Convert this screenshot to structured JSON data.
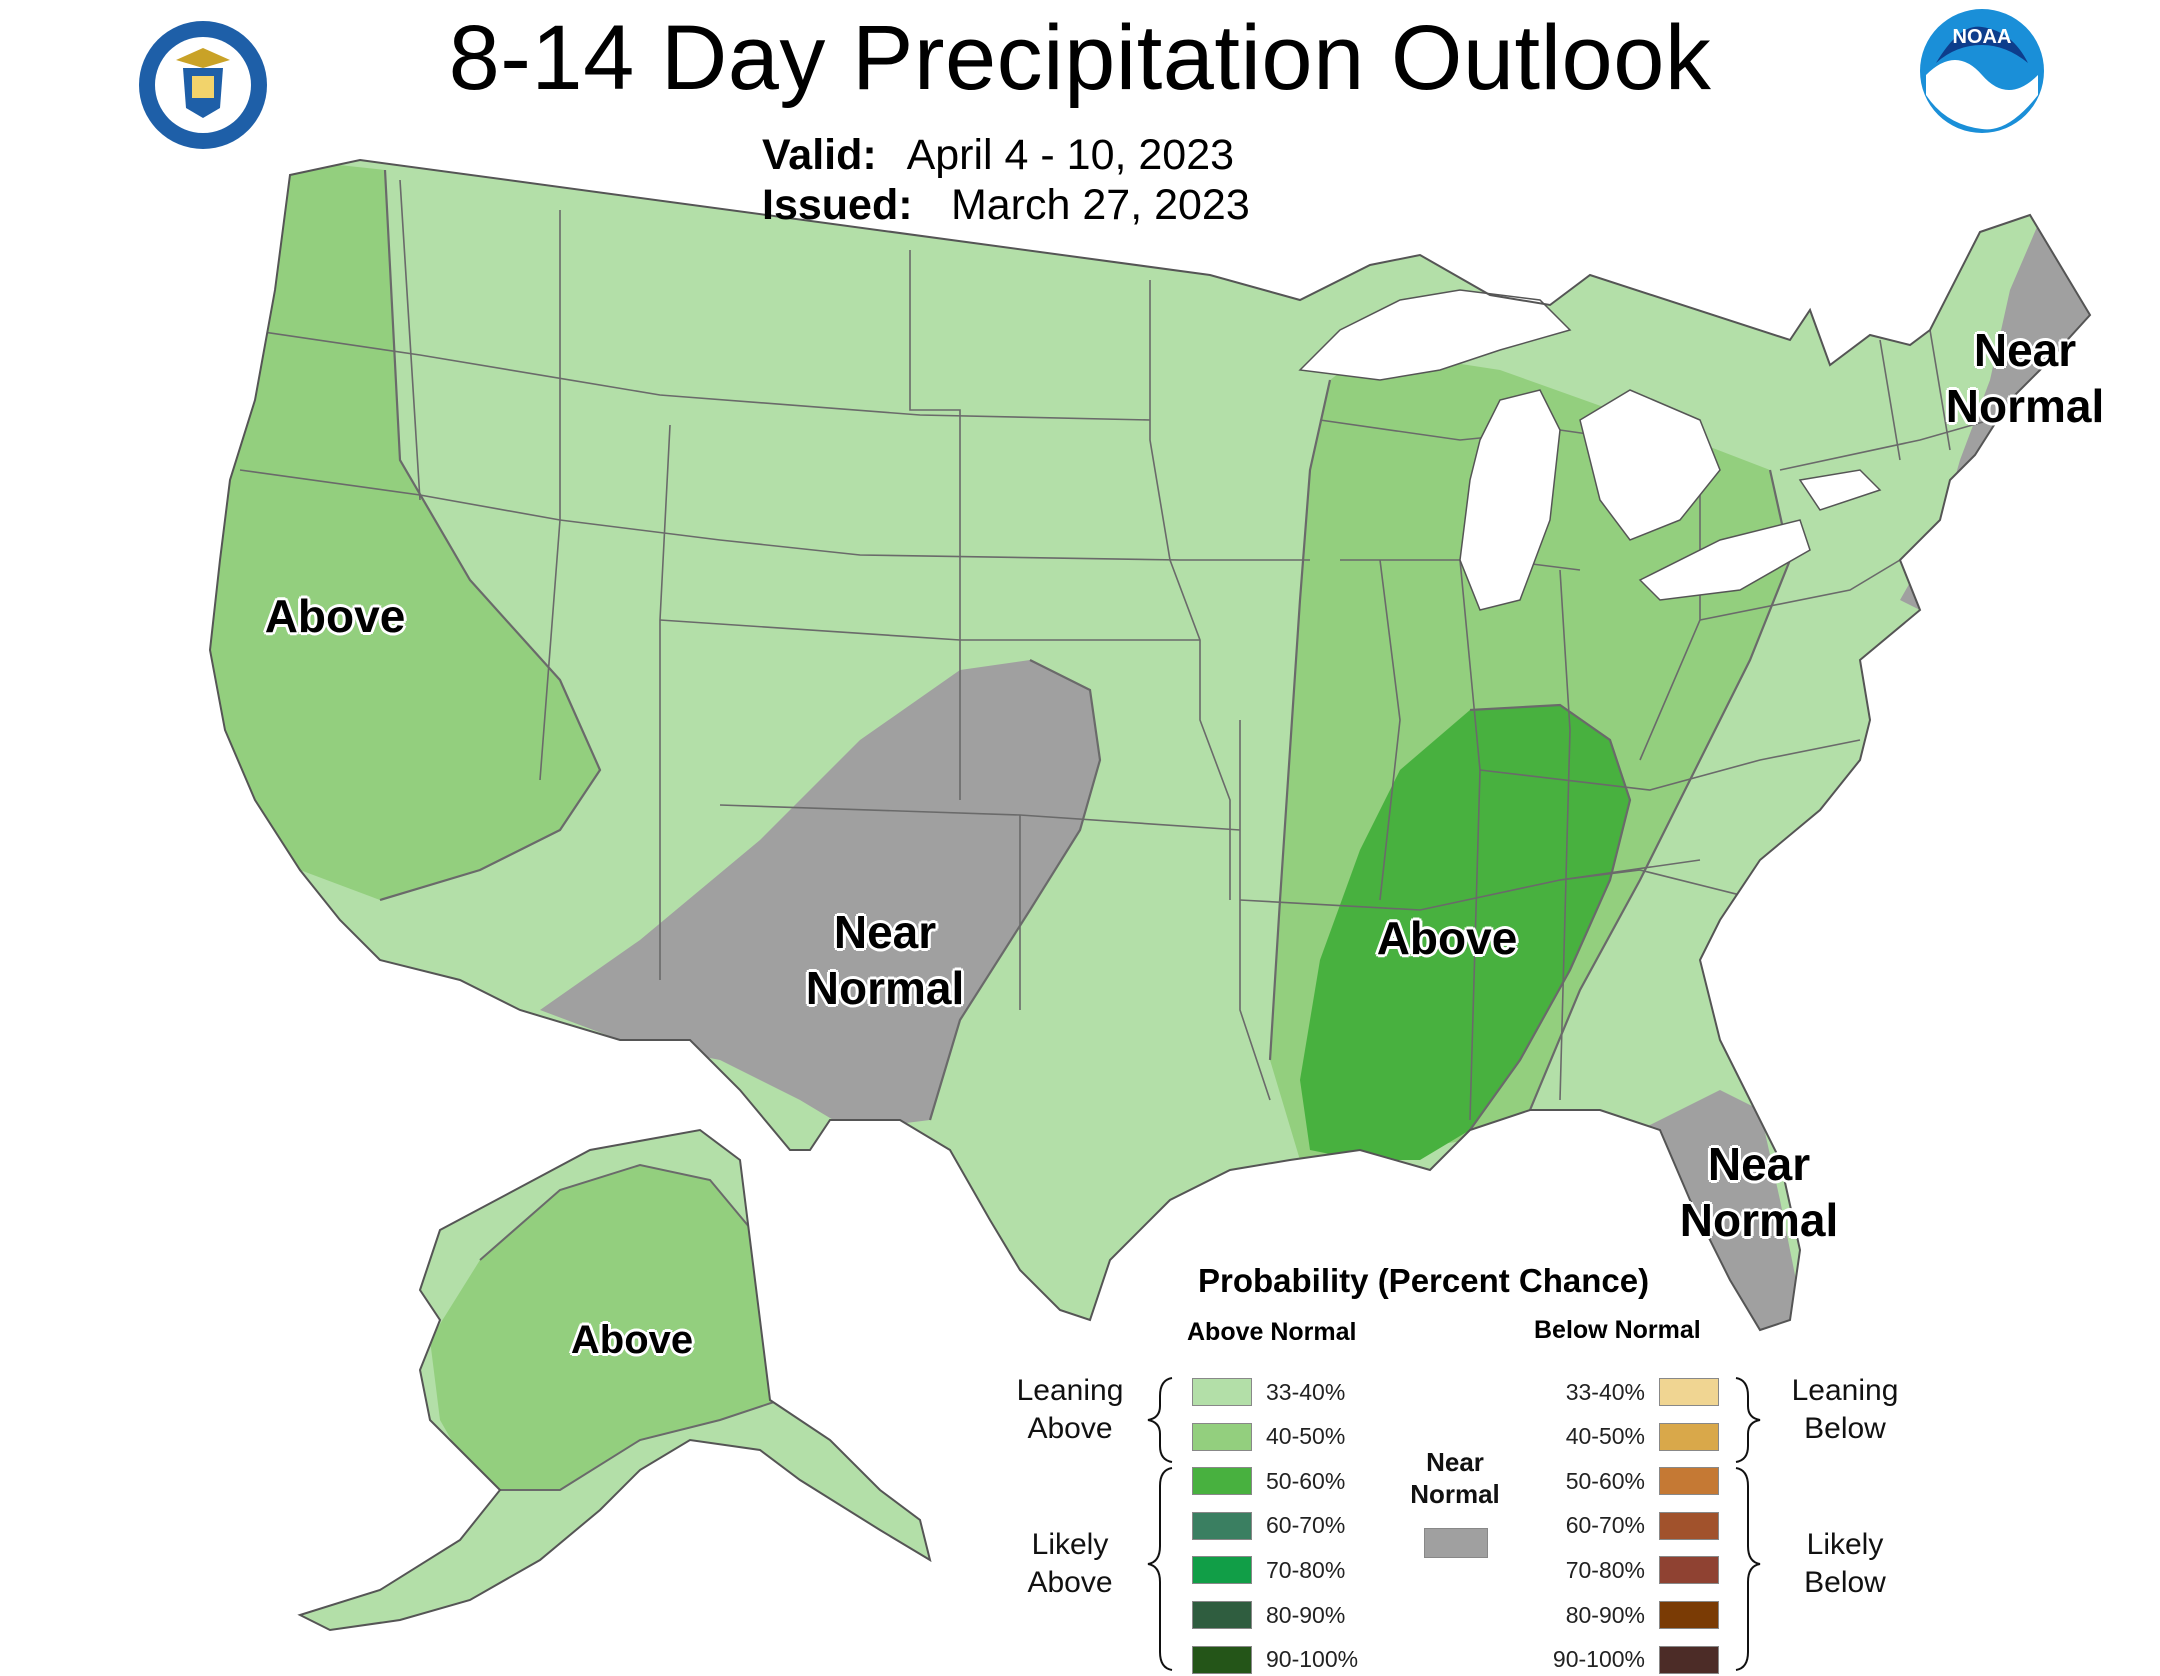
{
  "header": {
    "title": "8-14 Day Precipitation Outlook",
    "valid_label": "Valid:",
    "valid_value": "April 4 - 10, 2023",
    "issued_label": "Issued:",
    "issued_value": "March 27, 2023"
  },
  "logos": {
    "doc_seal": "department-of-commerce-seal",
    "noaa": "NOAA"
  },
  "regions": {
    "west_coast": "Above",
    "southwest_near": [
      "Near",
      "Normal"
    ],
    "mississippi_valley": "Above",
    "new_england_near": [
      "Near",
      "Normal"
    ],
    "florida_near": [
      "Near",
      "Normal"
    ],
    "alaska": "Above"
  },
  "legend": {
    "title": "Probability (Percent Chance)",
    "above_header": "Above Normal",
    "below_header": "Below Normal",
    "near_label": [
      "Near",
      "Normal"
    ],
    "leaning_above": [
      "Leaning",
      "Above"
    ],
    "likely_above": [
      "Likely",
      "Above"
    ],
    "leaning_below": [
      "Leaning",
      "Below"
    ],
    "likely_below": [
      "Likely",
      "Below"
    ],
    "above": [
      {
        "pct": "33-40%",
        "color": "#b3dfa8"
      },
      {
        "pct": "40-50%",
        "color": "#93cf7e"
      },
      {
        "pct": "50-60%",
        "color": "#48b13f"
      },
      {
        "pct": "60-70%",
        "color": "#3a7f61"
      },
      {
        "pct": "70-80%",
        "color": "#119e47"
      },
      {
        "pct": "80-90%",
        "color": "#2f5d3f"
      },
      {
        "pct": "90-100%",
        "color": "#245518"
      }
    ],
    "below": [
      {
        "pct": "33-40%",
        "color": "#f0d592"
      },
      {
        "pct": "40-50%",
        "color": "#d9a84a"
      },
      {
        "pct": "50-60%",
        "color": "#c57934"
      },
      {
        "pct": "60-70%",
        "color": "#a1522c"
      },
      {
        "pct": "70-80%",
        "color": "#8f4232"
      },
      {
        "pct": "80-90%",
        "color": "#7a3b05"
      },
      {
        "pct": "90-100%",
        "color": "#4c2c27"
      }
    ],
    "near_color": "#a0a0a0"
  },
  "colors": {
    "lean_above": "#b3dfa8",
    "above_40": "#93cf7e",
    "above_50": "#48b13f",
    "near": "#a0a0a0",
    "water": "#ffffff"
  }
}
